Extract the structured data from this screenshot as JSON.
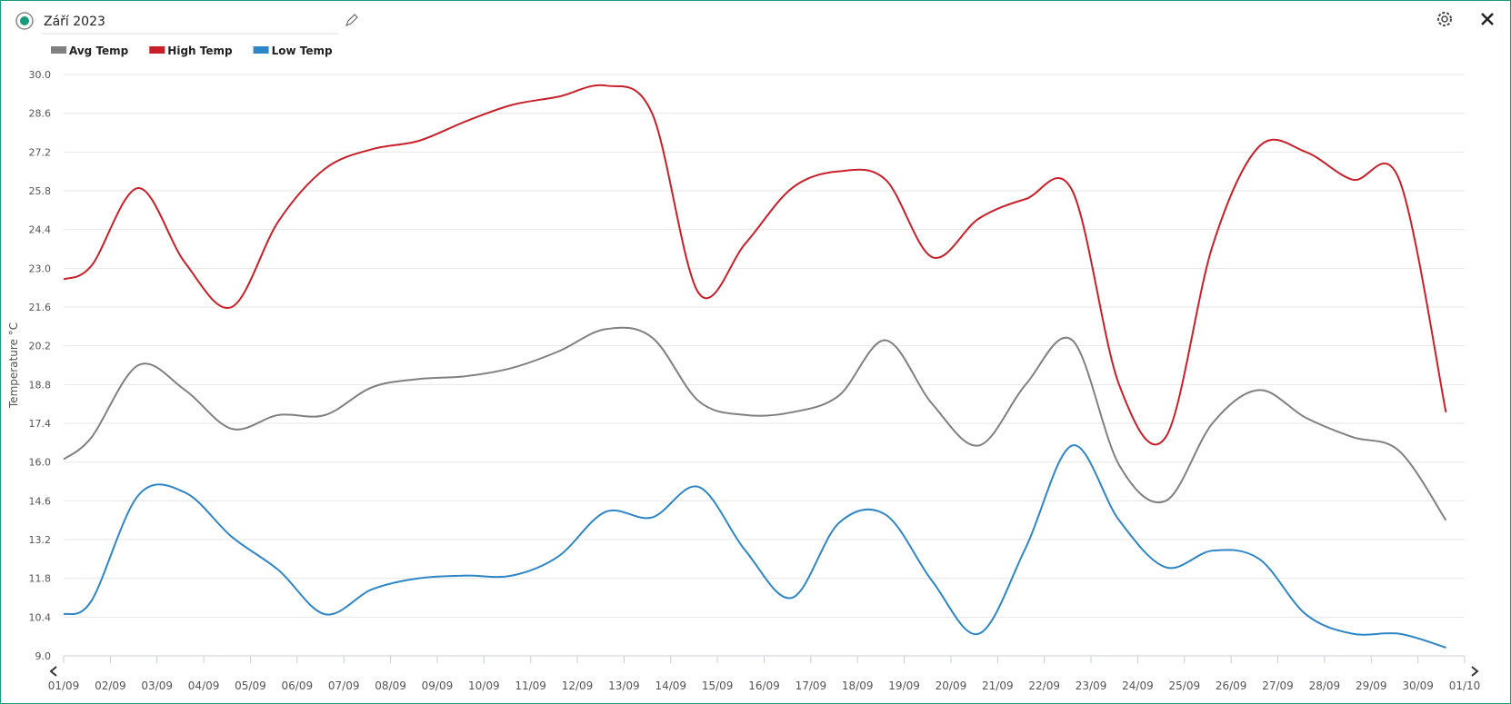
{
  "header": {
    "title": "Září 2023"
  },
  "chart_data": {
    "type": "line",
    "y_label": "Temperature °C",
    "categories": [
      "01/09",
      "02/09",
      "03/09",
      "04/09",
      "05/09",
      "06/09",
      "07/09",
      "08/09",
      "09/09",
      "10/09",
      "11/09",
      "12/09",
      "13/09",
      "14/09",
      "15/09",
      "16/09",
      "17/09",
      "18/09",
      "19/09",
      "20/09",
      "21/09",
      "22/09",
      "23/09",
      "24/09",
      "25/09",
      "26/09",
      "27/09",
      "28/09",
      "29/09",
      "30/09",
      "01/10"
    ],
    "ylim": [
      9.0,
      30.0
    ],
    "yticks": [
      {
        "value": 9,
        "label": "9.0"
      },
      10.4,
      11.8,
      13.2,
      14.6,
      {
        "value": 16,
        "label": "16.0"
      },
      17.4,
      18.8,
      20.2,
      21.6,
      {
        "value": 23,
        "label": "23.0"
      },
      24.4,
      25.8,
      27.2,
      28.6,
      {
        "value": 30,
        "label": "30.0"
      }
    ],
    "grid": true,
    "series": [
      {
        "name": "Avg Temp",
        "color": "#808080",
        "values": [
          16.1,
          16.9,
          19.5,
          18.6,
          17.2,
          17.7,
          17.7,
          18.7,
          19.0,
          19.1,
          19.4,
          20.0,
          20.8,
          20.5,
          18.2,
          17.7,
          17.8,
          18.4,
          20.4,
          18.1,
          16.6,
          18.8,
          20.4,
          15.9,
          14.6,
          17.4,
          18.6,
          17.6,
          16.9,
          16.4,
          13.9
        ]
      },
      {
        "name": "High Temp",
        "color": "#c8202a",
        "values": [
          22.6,
          23.1,
          25.9,
          23.2,
          21.6,
          24.7,
          26.6,
          27.3,
          27.6,
          28.3,
          28.9,
          29.2,
          29.6,
          28.6,
          22.1,
          23.9,
          25.9,
          26.5,
          26.2,
          23.4,
          24.8,
          25.5,
          25.8,
          18.8,
          16.9,
          23.8,
          27.4,
          27.2,
          26.2,
          26.2,
          17.8
        ]
      },
      {
        "name": "Low Temp",
        "color": "#2f86c6",
        "values": [
          10.5,
          11.0,
          14.8,
          14.9,
          13.3,
          12.1,
          10.5,
          11.4,
          11.8,
          11.9,
          11.9,
          12.6,
          14.2,
          14.0,
          15.1,
          12.8,
          11.1,
          13.8,
          14.1,
          11.7,
          9.8,
          12.9,
          16.6,
          13.9,
          12.2,
          12.8,
          12.5,
          10.5,
          9.8,
          9.8,
          9.3
        ]
      }
    ]
  }
}
